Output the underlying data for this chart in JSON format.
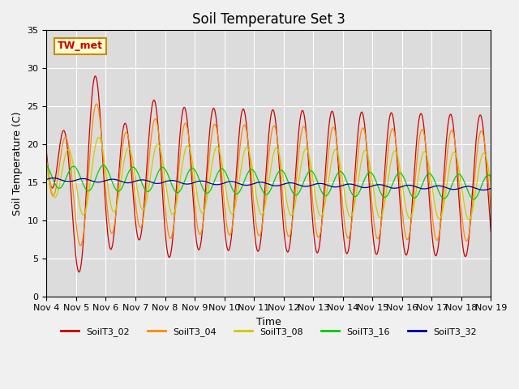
{
  "title": "Soil Temperature Set 3",
  "xlabel": "Time",
  "ylabel": "Soil Temperature (C)",
  "ylim": [
    0,
    35
  ],
  "annotation": "TW_met",
  "series_labels": [
    "SoilT3_02",
    "SoilT3_04",
    "SoilT3_08",
    "SoilT3_16",
    "SoilT3_32"
  ],
  "series_colors": [
    "#cc0000",
    "#ff8800",
    "#cccc00",
    "#00cc00",
    "#000099"
  ],
  "bg_color": "#dcdcdc",
  "fig_color": "#f0f0f0",
  "xtick_labels": [
    "Nov 4",
    "Nov 5",
    "Nov 6",
    "Nov 7",
    "Nov 8",
    "Nov 9",
    "Nov 10",
    "Nov 11",
    "Nov 12",
    "Nov 13",
    "Nov 14",
    "Nov 15",
    "Nov 16",
    "Nov 17",
    "Nov 18",
    "Nov 19"
  ],
  "ytick_labels": [
    "0",
    "5",
    "10",
    "15",
    "20",
    "25",
    "30",
    "35"
  ],
  "ytick_vals": [
    0,
    5,
    10,
    15,
    20,
    25,
    30,
    35
  ],
  "title_fontsize": 12,
  "axis_fontsize": 9,
  "tick_fontsize": 8,
  "n_days": 15,
  "n_pts_per_day": 48
}
